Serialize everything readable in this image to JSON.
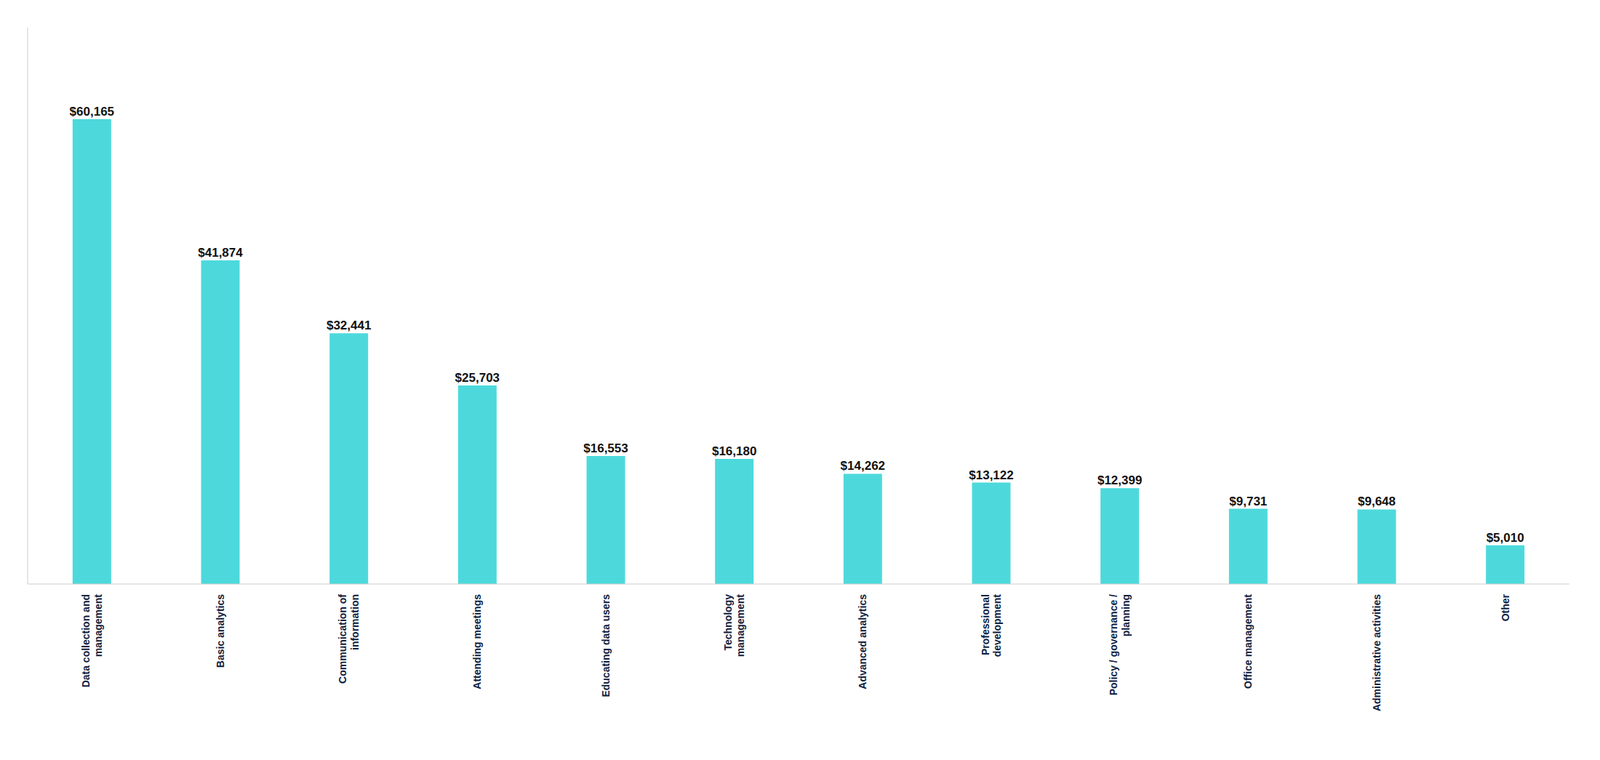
{
  "chart_data": {
    "type": "bar",
    "categories": [
      "Data collection and\nmanagement",
      "Basic analytics",
      "Communication of\ninformation",
      "Attending meetings",
      "Educating data users",
      "Technology\nmanagement",
      "Advanced analytics",
      "Professional\ndevelopment",
      "Policy / governance /\nplanning",
      "Office management",
      "Administrative activities",
      "Other"
    ],
    "values": [
      60165,
      41874,
      32441,
      25703,
      16553,
      16180,
      14262,
      13122,
      12399,
      9731,
      9648,
      5010
    ],
    "value_labels": [
      "$60,165",
      "$41,874",
      "$32,441",
      "$25,703",
      "$16,553",
      "$16,180",
      "$14,262",
      "$13,122",
      "$12,399",
      "$9,731",
      "$9,648",
      "$5,010"
    ],
    "data_labels": true,
    "color": "#4DD9DC",
    "ylim": [
      0,
      72000
    ],
    "tick_labels": "x",
    "grid": false
  }
}
